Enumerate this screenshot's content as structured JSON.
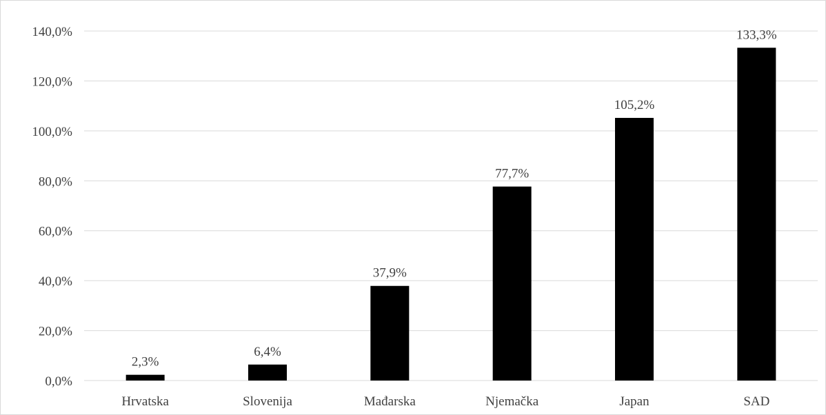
{
  "chart_data": {
    "type": "bar",
    "categories": [
      "Hrvatska",
      "Slovenija",
      "Mađarska",
      "Njemačka",
      "Japan",
      "SAD"
    ],
    "values": [
      2.3,
      6.4,
      37.9,
      77.7,
      105.2,
      133.3
    ],
    "data_labels": [
      "2,3%",
      "6,4%",
      "37,9%",
      "77,7%",
      "105,2%",
      "133,3%"
    ],
    "ylim": [
      0,
      140
    ],
    "yticks": [
      0,
      20,
      40,
      60,
      80,
      100,
      120,
      140
    ],
    "ytick_labels": [
      "0,0%",
      "20,0%",
      "40,0%",
      "60,0%",
      "80,0%",
      "100,0%",
      "120,0%",
      "140,0%"
    ],
    "title": "",
    "xlabel": "",
    "ylabel": "",
    "grid": true,
    "legend": "none",
    "colors": {
      "bar": "#000000",
      "grid": "#d9d9d9",
      "text": "#404040"
    }
  }
}
